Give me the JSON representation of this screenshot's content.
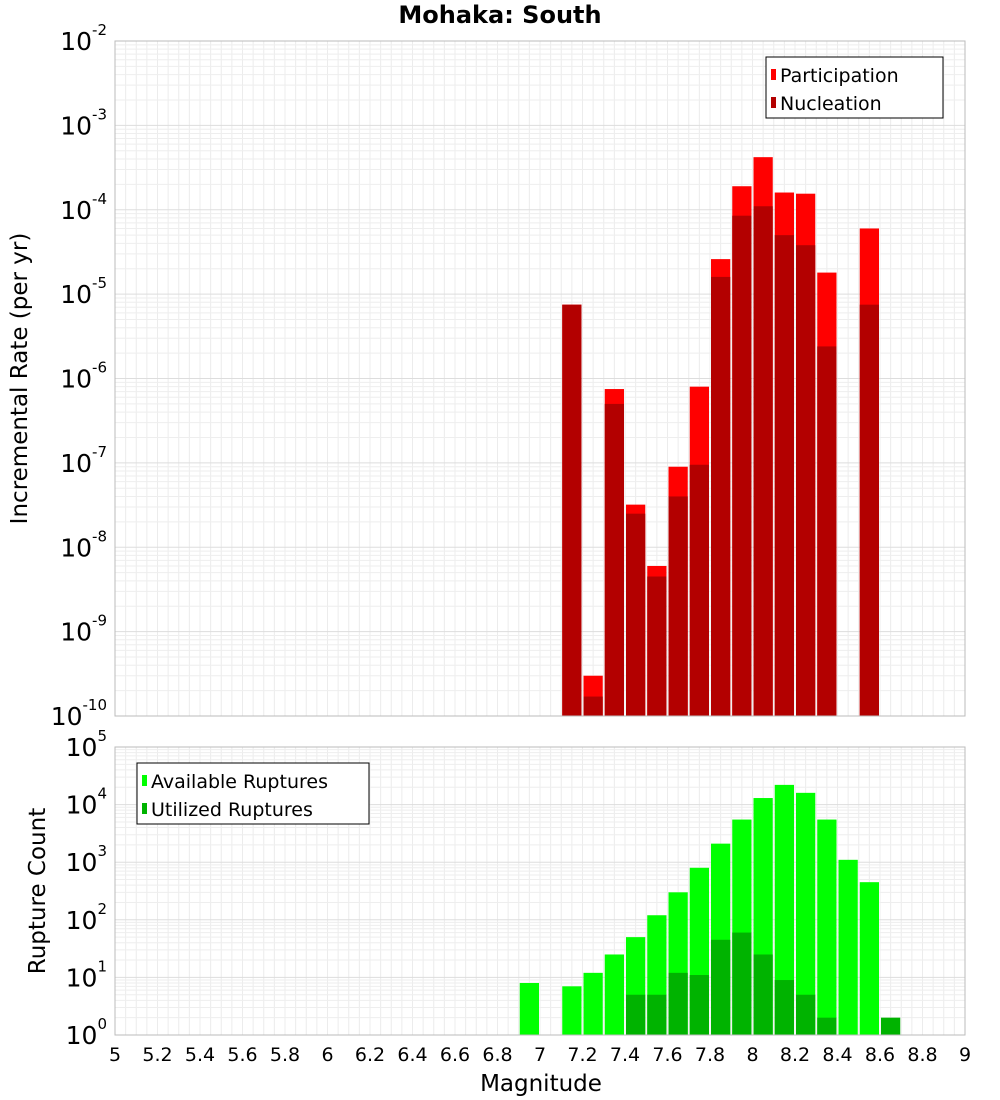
{
  "chart_data": {
    "type": "bar",
    "title": "Mohaka: South",
    "xlabel": "Magnitude",
    "xlim": [
      5,
      9
    ],
    "x_ticks": [
      "5",
      "5.2",
      "5.4",
      "5.6",
      "5.8",
      "6",
      "6.2",
      "6.4",
      "6.6",
      "6.8",
      "7",
      "7.2",
      "7.4",
      "7.6",
      "7.8",
      "8",
      "8.2",
      "8.4",
      "8.6",
      "8.8",
      "9"
    ],
    "bin_width": 0.1,
    "panels": [
      {
        "id": "rate",
        "ylabel": "Incremental Rate (per yr)",
        "yscale": "log",
        "ylim_exp": [
          -10,
          -2
        ],
        "legend_position": "top-right",
        "series": [
          {
            "name": "Participation",
            "color": "#ff0000",
            "x": [
              7.15,
              7.25,
              7.35,
              7.45,
              7.55,
              7.65,
              7.75,
              7.85,
              7.95,
              8.05,
              8.15,
              8.25,
              8.35,
              8.55
            ],
            "values": [
              7.5e-06,
              3e-10,
              7.5e-07,
              3.2e-08,
              6e-09,
              9e-08,
              8e-07,
              2.6e-05,
              0.00019,
              0.00042,
              0.00016,
              0.000155,
              1.8e-05,
              6e-05
            ]
          },
          {
            "name": "Nucleation",
            "color": "#b30000",
            "x": [
              7.15,
              7.25,
              7.35,
              7.45,
              7.55,
              7.65,
              7.75,
              7.85,
              7.95,
              8.05,
              8.15,
              8.25,
              8.35,
              8.55
            ],
            "values": [
              7.5e-06,
              1.7e-10,
              5e-07,
              2.5e-08,
              4.5e-09,
              4e-08,
              9.5e-08,
              1.6e-05,
              8.5e-05,
              0.00011,
              5e-05,
              3.8e-05,
              2.4e-06,
              7.5e-06
            ]
          }
        ]
      },
      {
        "id": "count",
        "ylabel": "Rupture Count",
        "yscale": "log",
        "ylim_exp": [
          0,
          5
        ],
        "legend_position": "top-left",
        "series": [
          {
            "name": "Available Ruptures",
            "color": "#00ff00",
            "x": [
              6.95,
              7.15,
              7.25,
              7.35,
              7.45,
              7.55,
              7.65,
              7.75,
              7.85,
              7.95,
              8.05,
              8.15,
              8.25,
              8.35,
              8.45,
              8.55
            ],
            "values": [
              8,
              7,
              12,
              25,
              50,
              120,
              300,
              800,
              2100,
              5500,
              13000,
              22000,
              16000,
              5500,
              1100,
              450
            ]
          },
          {
            "name": "Utilized Ruptures",
            "color": "#00b300",
            "x": [
              7.15,
              7.25,
              7.35,
              7.45,
              7.55,
              7.65,
              7.75,
              7.85,
              7.95,
              8.05,
              8.15,
              8.25,
              8.35,
              8.55,
              8.65
            ],
            "values": [
              1,
              1,
              1,
              5,
              5,
              12,
              11,
              45,
              60,
              25,
              9,
              5,
              2,
              1,
              2
            ]
          }
        ]
      }
    ]
  }
}
